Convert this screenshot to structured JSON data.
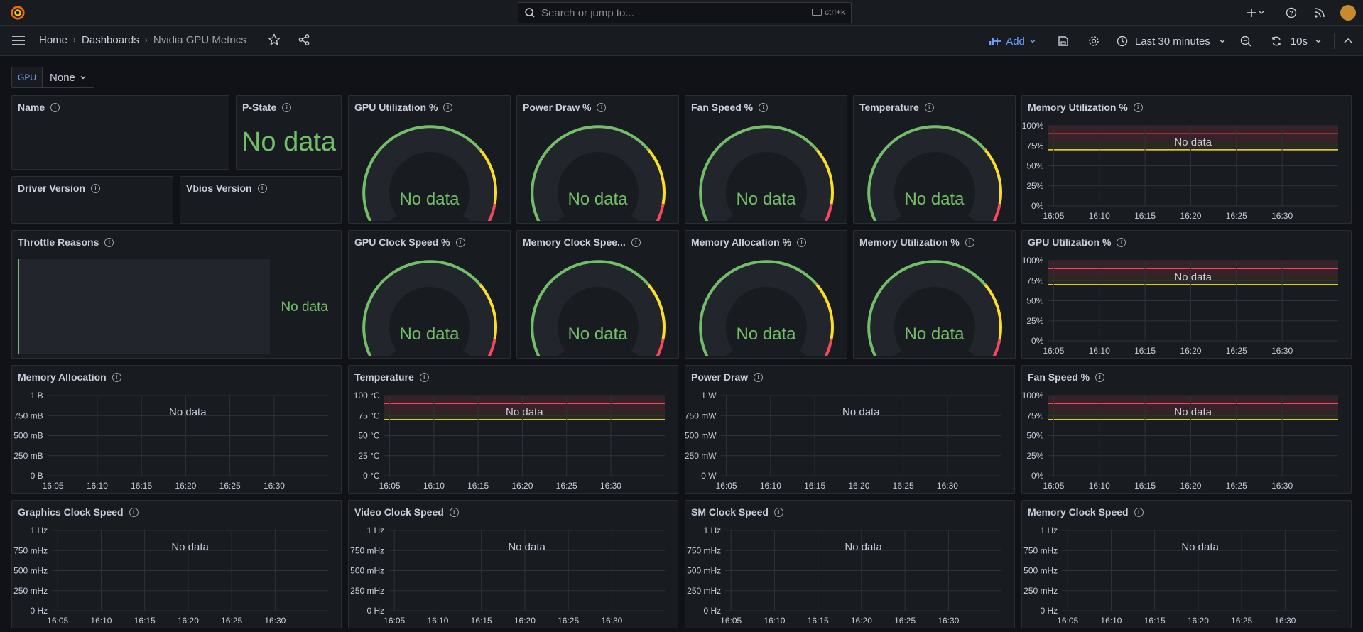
{
  "topbar": {
    "search_placeholder": "Search or jump to...",
    "search_shortcut": "ctrl+k"
  },
  "breadcrumb": {
    "home": "Home",
    "dashboards": "Dashboards",
    "current": "Nvidia GPU Metrics"
  },
  "toolbar": {
    "add_label": "Add",
    "time_range": "Last 30 minutes",
    "refresh_interval": "10s"
  },
  "variables": {
    "gpu_label": "GPU",
    "gpu_value": "None"
  },
  "no_data": "No data",
  "panels": {
    "name": "Name",
    "pstate": "P-State",
    "driver": "Driver Version",
    "vbios": "Vbios Version",
    "throttle": "Throttle Reasons",
    "gauges": [
      "GPU Utilization %",
      "Power Draw %",
      "Fan Speed %",
      "Temperature",
      "GPU Clock Speed %",
      "Memory Clock Spee...",
      "Memory Allocation %",
      "Memory Utilization %"
    ],
    "ts_memutil": "Memory Utilization %",
    "ts_gpuutil": "GPU Utilization %",
    "ts_memalloc": "Memory Allocation",
    "ts_temp": "Temperature",
    "ts_power": "Power Draw",
    "ts_fan": "Fan Speed %",
    "ts_gfxclk": "Graphics Clock Speed",
    "ts_vidclk": "Video Clock Speed",
    "ts_smclk": "SM Clock Speed",
    "ts_memclk": "Memory Clock Speed"
  },
  "chart_data": [
    {
      "panel": "Memory Utilization %",
      "type": "line",
      "x_ticks": [
        "16:05",
        "16:10",
        "16:15",
        "16:20",
        "16:25",
        "16:30"
      ],
      "y_ticks": [
        "100%",
        "75%",
        "50%",
        "25%",
        "0%"
      ],
      "thresholds": true
    },
    {
      "panel": "GPU Utilization %",
      "type": "line",
      "x_ticks": [
        "16:05",
        "16:10",
        "16:15",
        "16:20",
        "16:25",
        "16:30"
      ],
      "y_ticks": [
        "100%",
        "75%",
        "50%",
        "25%",
        "0%"
      ],
      "thresholds": true
    },
    {
      "panel": "Memory Allocation",
      "type": "line",
      "x_ticks": [
        "16:05",
        "16:10",
        "16:15",
        "16:20",
        "16:25",
        "16:30"
      ],
      "y_ticks": [
        "1 B",
        "750 mB",
        "500 mB",
        "250 mB",
        "0 B"
      ],
      "thresholds": false
    },
    {
      "panel": "Temperature",
      "type": "line",
      "x_ticks": [
        "16:05",
        "16:10",
        "16:15",
        "16:20",
        "16:25",
        "16:30"
      ],
      "y_ticks": [
        "100 °C",
        "75 °C",
        "50 °C",
        "25 °C",
        "0 °C"
      ],
      "thresholds": true
    },
    {
      "panel": "Power Draw",
      "type": "line",
      "x_ticks": [
        "16:05",
        "16:10",
        "16:15",
        "16:20",
        "16:25",
        "16:30"
      ],
      "y_ticks": [
        "1 W",
        "750 mW",
        "500 mW",
        "250 mW",
        "0 W"
      ],
      "thresholds": false
    },
    {
      "panel": "Fan Speed %",
      "type": "line",
      "x_ticks": [
        "16:05",
        "16:10",
        "16:15",
        "16:20",
        "16:25",
        "16:30"
      ],
      "y_ticks": [
        "100%",
        "75%",
        "50%",
        "25%",
        "0%"
      ],
      "thresholds": true
    },
    {
      "panel": "Graphics Clock Speed",
      "type": "line",
      "x_ticks": [
        "16:05",
        "16:10",
        "16:15",
        "16:20",
        "16:25",
        "16:30"
      ],
      "y_ticks": [
        "1 Hz",
        "750 mHz",
        "500 mHz",
        "250 mHz",
        "0 Hz"
      ],
      "thresholds": false
    },
    {
      "panel": "Video Clock Speed",
      "type": "line",
      "x_ticks": [
        "16:05",
        "16:10",
        "16:15",
        "16:20",
        "16:25",
        "16:30"
      ],
      "y_ticks": [
        "1 Hz",
        "750 mHz",
        "500 mHz",
        "250 mHz",
        "0 Hz"
      ],
      "thresholds": false
    },
    {
      "panel": "SM Clock Speed",
      "type": "line",
      "x_ticks": [
        "16:05",
        "16:10",
        "16:15",
        "16:20",
        "16:25",
        "16:30"
      ],
      "y_ticks": [
        "1 Hz",
        "750 mHz",
        "500 mHz",
        "250 mHz",
        "0 Hz"
      ],
      "thresholds": false
    },
    {
      "panel": "Memory Clock Speed",
      "type": "line",
      "x_ticks": [
        "16:05",
        "16:10",
        "16:15",
        "16:20",
        "16:25",
        "16:30"
      ],
      "y_ticks": [
        "1 Hz",
        "750 mHz",
        "500 mHz",
        "250 mHz",
        "0 Hz"
      ],
      "thresholds": false
    }
  ],
  "colors": {
    "green": "#73bf69",
    "yellow": "#fade2a",
    "red": "#f2495c",
    "accent": "#6e9fff"
  }
}
